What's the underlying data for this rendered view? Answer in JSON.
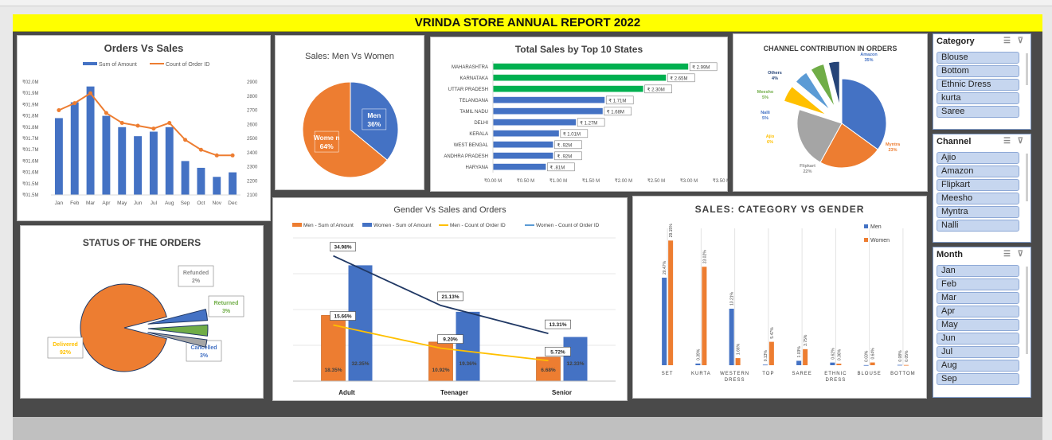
{
  "report_title": "VRINDA STORE ANNUAL REPORT 2022",
  "colors": {
    "blue": "#4472c4",
    "orange": "#ed7d31",
    "green": "#00b050",
    "gray": "#a5a5a5",
    "yellow": "#ffc000",
    "navy": "#203864",
    "lightblue": "#5b9bd5"
  },
  "chart_data": [
    {
      "id": "orders_vs_sales",
      "type": "bar",
      "title": "Orders Vs Sales",
      "categories": [
        "Jan",
        "Feb",
        "Mar",
        "Apr",
        "May",
        "Jun",
        "Jul",
        "Aug",
        "Sep",
        "Oct",
        "Nov",
        "Dec"
      ],
      "series": [
        {
          "name": "Sum of Amount",
          "axis": "left",
          "values": [
            1.84,
            1.91,
            1.98,
            1.85,
            1.8,
            1.76,
            1.78,
            1.8,
            1.65,
            1.62,
            1.58,
            1.6
          ]
        },
        {
          "name": "Count of Order ID",
          "axis": "right",
          "type": "line",
          "values": [
            2700,
            2750,
            2820,
            2680,
            2610,
            2590,
            2570,
            2610,
            2490,
            2420,
            2380,
            2380
          ]
        }
      ],
      "y_left_ticks": [
        "₹02.0M",
        "₹01.9M",
        "₹01.9M",
        "₹01.8M",
        "₹01.8M",
        "₹01.7M",
        "₹01.7M",
        "₹01.6M",
        "₹01.6M",
        "₹01.5M",
        "₹01.5M"
      ],
      "y_right_ticks": [
        "2900",
        "2800",
        "2700",
        "2600",
        "2500",
        "2400",
        "2300",
        "2200",
        "2100"
      ],
      "ylim_left": [
        1.5,
        2.0
      ],
      "ylim_right": [
        2100,
        2900
      ]
    },
    {
      "id": "men_vs_women",
      "type": "pie",
      "title": "Sales: Men Vs Women",
      "slices": [
        {
          "label": "Men",
          "value": 36,
          "text": "36%"
        },
        {
          "label": "Wome n",
          "value": 64,
          "text": "64%"
        }
      ]
    },
    {
      "id": "top_states",
      "type": "bar",
      "orientation": "horizontal",
      "title": "Total Sales by Top 10 States",
      "categories": [
        "MAHARASHTRA",
        "KARNATAKA",
        "UTTAR PRADESH",
        "TELANGANA",
        "TAMIL NADU",
        "DELHI",
        "KERALA",
        "WEST BENGAL",
        "ANDHRA PRADESH",
        "HARYANA"
      ],
      "values": [
        2.99,
        2.65,
        2.3,
        1.71,
        1.68,
        1.27,
        1.01,
        0.92,
        0.92,
        0.81
      ],
      "labels": [
        "₹ 2.99M",
        "₹ 2.65M",
        "₹ 2.30M",
        "₹ 1.71M",
        "₹ 1.68M",
        "₹ 1.27M",
        "₹ 1.01M",
        "₹ .92M",
        "₹ .92M",
        "₹ .81M"
      ],
      "x_ticks": [
        "₹0.00 M",
        "₹0.50 M",
        "₹1.00 M",
        "₹1.50 M",
        "₹2.00 M",
        "₹2.50 M",
        "₹3.00 M",
        "₹3.50 M"
      ],
      "xlim": [
        0,
        3.5
      ]
    },
    {
      "id": "channel_contribution",
      "type": "pie",
      "title": "CHANNEL CONTRIBUTION IN ORDERS",
      "slices": [
        {
          "label": "Amazon",
          "value": 35,
          "text": "35%"
        },
        {
          "label": "Myntra",
          "value": 23,
          "text": "23%"
        },
        {
          "label": "Flipkart",
          "value": 22,
          "text": "22%"
        },
        {
          "label": "Ajio",
          "value": 6,
          "text": "6%"
        },
        {
          "label": "Nalli",
          "value": 5,
          "text": "5%"
        },
        {
          "label": "Meesho",
          "value": 5,
          "text": "5%"
        },
        {
          "label": "Others",
          "value": 4,
          "text": "4%"
        }
      ]
    },
    {
      "id": "order_status",
      "type": "pie",
      "title": "STATUS OF THE ORDERS",
      "slices": [
        {
          "label": "Delivered",
          "value": 92,
          "text": "92%"
        },
        {
          "label": "Cancelled",
          "value": 3,
          "text": "3%"
        },
        {
          "label": "Returned",
          "value": 3,
          "text": "3%"
        },
        {
          "label": "Refunded",
          "value": 2,
          "text": "2%"
        }
      ]
    },
    {
      "id": "gender_sales_orders",
      "type": "bar",
      "title": "Gender Vs Sales and Orders",
      "categories": [
        "Adult",
        "Teenager",
        "Senior"
      ],
      "series": [
        {
          "name": "Men - Sum of Amount",
          "values": [
            18.35,
            10.92,
            6.68
          ],
          "labels": [
            "18.35%",
            "10.92%",
            "6.68%"
          ]
        },
        {
          "name": "Women - Sum of Amount",
          "values": [
            32.35,
            19.36,
            12.33
          ],
          "labels": [
            "32.35%",
            "19.36%",
            "12.33%"
          ]
        },
        {
          "name": "Men - Count of Order ID",
          "type": "line",
          "values": [
            15.66,
            9.2,
            5.72
          ],
          "labels": [
            "15.66%",
            "9.20%",
            "5.72%"
          ]
        },
        {
          "name": "Women - Count of Order ID",
          "type": "line",
          "values": [
            34.98,
            21.13,
            13.31
          ],
          "labels": [
            "34.98%",
            "21.13%",
            "13.31%"
          ]
        }
      ]
    },
    {
      "id": "category_vs_gender",
      "type": "bar",
      "title": "SALES: CATEGORY VS GENDER",
      "categories": [
        "SET",
        "KURTA",
        "WESTERN DRESS",
        "TOP",
        "SAREE",
        "ETHNIC DRESS",
        "BLOUSE",
        "BOTTOM"
      ],
      "series": [
        {
          "name": "Men",
          "values": [
            20.47,
            0.39,
            13.21,
            0.13,
            1.03,
            0.62,
            0.03,
            0.08
          ],
          "labels": [
            "20.47%",
            "0.39%",
            "13.21%",
            "0.13%",
            "1.03%",
            "0.62%",
            "0.03%",
            "0.08%"
          ]
        },
        {
          "name": "Women",
          "values": [
            29.15,
            23.02,
            1.66,
            5.47,
            3.75,
            0.36,
            0.64,
            0.05
          ],
          "labels": [
            "29.15%",
            "23.02%",
            "1.66%",
            "5.47%",
            "3.75%",
            "0.36%",
            "0.64%",
            "0.05%"
          ]
        }
      ]
    }
  ],
  "slicers": {
    "category": {
      "title": "Category",
      "items": [
        "Blouse",
        "Bottom",
        "Ethnic Dress",
        "kurta",
        "Saree"
      ]
    },
    "channel": {
      "title": "Channel",
      "items": [
        "Ajio",
        "Amazon",
        "Flipkart",
        "Meesho",
        "Myntra",
        "Nalli"
      ]
    },
    "month": {
      "title": "Month",
      "items": [
        "Jan",
        "Feb",
        "Mar",
        "Apr",
        "May",
        "Jun",
        "Jul",
        "Aug",
        "Sep"
      ]
    }
  }
}
